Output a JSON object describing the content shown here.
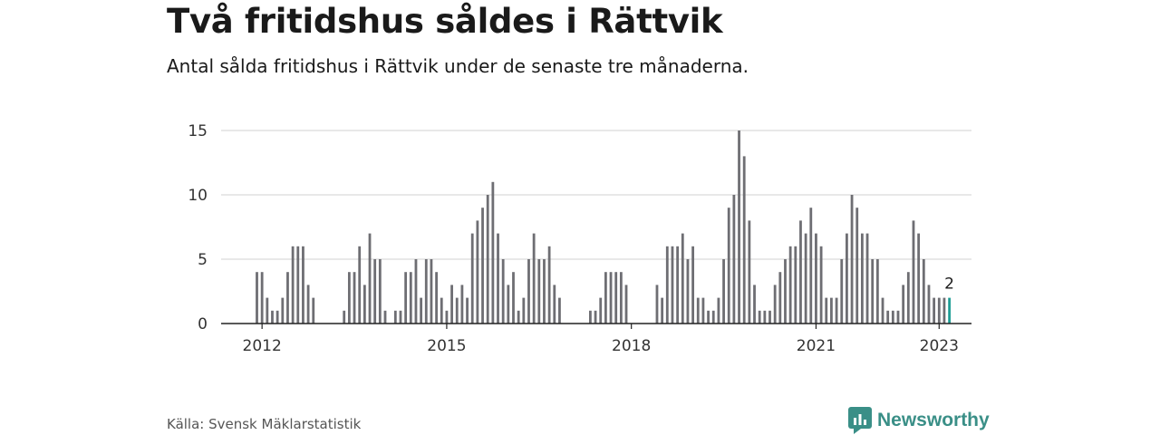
{
  "title": "Två fritidshus såldes i Rättvik",
  "subtitle": "Antal sålda fritidshus i Rättvik under de senaste tre månaderna.",
  "source": "Källa: Svensk Mäklarstatistik",
  "brand": "Newsworthy",
  "colors": {
    "bar": "#6e6e73",
    "highlight": "#1f9e96",
    "grid": "#d9d9d9",
    "axis": "#222222",
    "brand": "#3a8f87"
  },
  "chart_data": {
    "type": "bar",
    "title": "",
    "xlabel": "",
    "ylabel": "",
    "ylim": [
      0,
      15
    ],
    "yticks": [
      0,
      5,
      10,
      15
    ],
    "xticks": [
      "2012",
      "2015",
      "2018",
      "2021",
      "2023"
    ],
    "grid": true,
    "start": "2011-12",
    "highlight_label": "2",
    "values": [
      4,
      4,
      2,
      1,
      1,
      2,
      4,
      6,
      6,
      6,
      3,
      2,
      0,
      0,
      0,
      0,
      0,
      1,
      4,
      4,
      6,
      3,
      7,
      5,
      5,
      1,
      0,
      1,
      1,
      4,
      4,
      5,
      2,
      5,
      5,
      4,
      2,
      1,
      3,
      2,
      3,
      2,
      7,
      8,
      9,
      10,
      11,
      7,
      5,
      3,
      4,
      1,
      2,
      5,
      7,
      5,
      5,
      6,
      3,
      2,
      0,
      0,
      0,
      0,
      0,
      1,
      1,
      2,
      4,
      4,
      4,
      4,
      3,
      0,
      0,
      0,
      0,
      0,
      3,
      2,
      6,
      6,
      6,
      7,
      5,
      6,
      2,
      2,
      1,
      1,
      2,
      5,
      9,
      10,
      15,
      13,
      8,
      3,
      1,
      1,
      1,
      3,
      4,
      5,
      6,
      6,
      8,
      7,
      9,
      7,
      6,
      2,
      2,
      2,
      5,
      7,
      10,
      9,
      7,
      7,
      5,
      5,
      2,
      1,
      1,
      1,
      3,
      4,
      8,
      7,
      5,
      3,
      2,
      2,
      2,
      2
    ]
  }
}
